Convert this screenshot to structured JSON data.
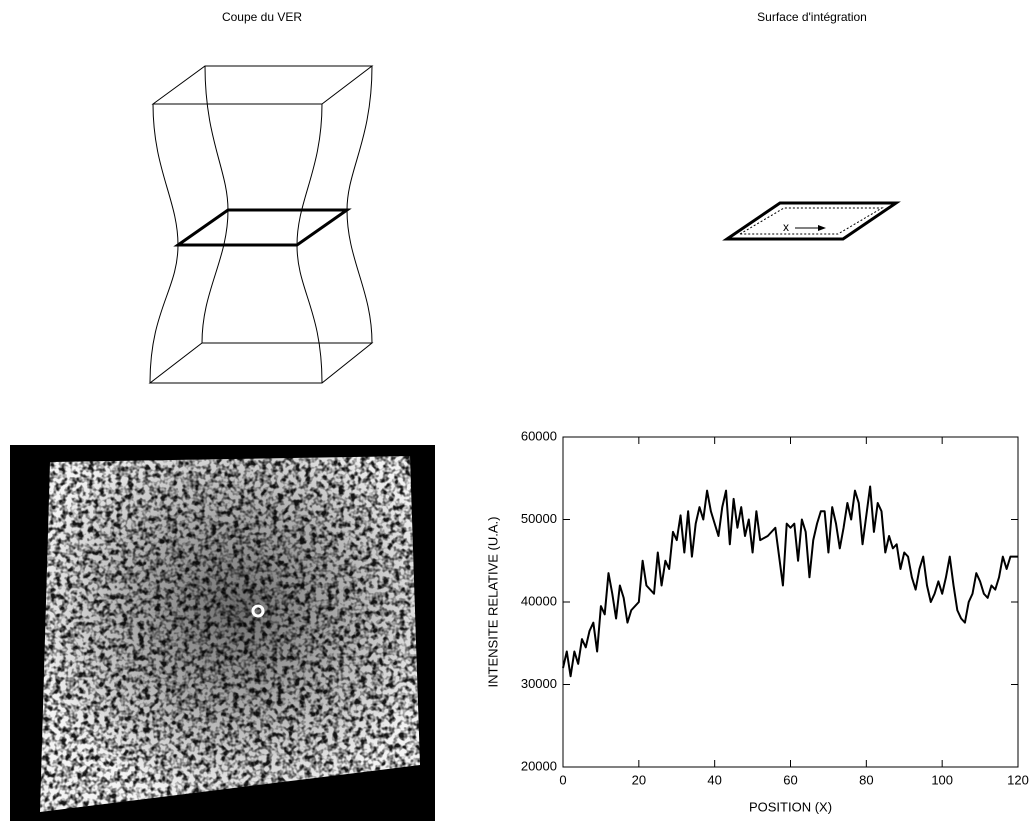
{
  "panels": {
    "left_title": "Coupe du VER",
    "right_title": "Surface d'intégration",
    "arrow_label": "x"
  },
  "chart_data": {
    "type": "line",
    "xlabel": "POSITION (X)",
    "ylabel": "INTENSITE RELATIVE (U.A.)",
    "color": "#000000",
    "x": [
      0,
      1,
      2,
      3,
      4,
      5,
      6,
      7,
      8,
      9,
      10,
      11,
      12,
      13,
      14,
      15,
      16,
      17,
      18,
      20,
      21,
      22,
      24,
      25,
      26,
      27,
      28,
      29,
      30,
      31,
      32,
      33,
      34,
      35,
      36,
      37,
      38,
      39,
      40,
      41,
      42,
      43,
      44,
      45,
      46,
      47,
      48,
      49,
      50,
      51,
      52,
      54,
      56,
      57,
      58,
      59,
      60,
      61,
      62,
      63,
      64,
      65,
      66,
      67,
      68,
      69,
      70,
      71,
      72,
      73,
      74,
      75,
      76,
      77,
      78,
      79,
      80,
      81,
      82,
      83,
      84,
      85,
      86,
      87,
      88,
      89,
      90,
      91,
      92,
      93,
      94,
      95,
      96,
      97,
      98,
      99,
      100,
      101,
      102,
      103,
      104,
      105,
      106,
      107,
      108,
      109,
      110,
      111,
      112,
      113,
      114,
      115,
      116,
      117,
      118,
      120
    ],
    "values": [
      32000,
      34000,
      31000,
      34000,
      32500,
      35500,
      34500,
      36500,
      37500,
      34000,
      39500,
      38500,
      43500,
      41000,
      38000,
      42000,
      40500,
      37500,
      39000,
      40000,
      45000,
      42000,
      41000,
      46000,
      42000,
      45000,
      44000,
      48500,
      47500,
      50500,
      46000,
      51000,
      45500,
      49500,
      51500,
      50000,
      53500,
      51000,
      49500,
      48000,
      51500,
      53500,
      47000,
      52500,
      49000,
      51500,
      48000,
      50000,
      46000,
      51000,
      47500,
      48000,
      49000,
      45500,
      42000,
      49500,
      49000,
      49500,
      45000,
      50000,
      48500,
      43000,
      47500,
      49500,
      51000,
      51000,
      46000,
      51500,
      49500,
      46500,
      49000,
      52000,
      50000,
      53500,
      52000,
      47000,
      50500,
      54000,
      48500,
      52000,
      51000,
      46000,
      48000,
      46500,
      47000,
      44000,
      46000,
      45500,
      43000,
      41500,
      44000,
      45500,
      42000,
      40000,
      41000,
      42500,
      41000,
      43000,
      45500,
      42000,
      39000,
      38000,
      37500,
      40000,
      41000,
      43500,
      42500,
      41000,
      40500,
      42000,
      41500,
      43000,
      45500,
      44000,
      45500,
      45500
    ],
    "xlim": [
      0,
      120
    ],
    "xticks": [
      0,
      20,
      40,
      60,
      80,
      100,
      120
    ],
    "ylim": [
      20000,
      60000
    ],
    "yticks": [
      20000,
      30000,
      40000,
      50000,
      60000
    ]
  }
}
